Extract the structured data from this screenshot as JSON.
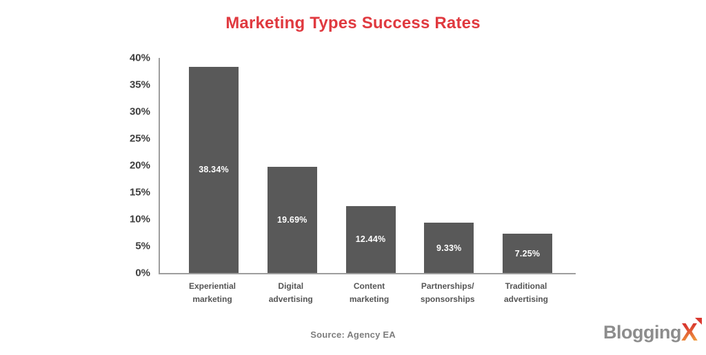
{
  "chart_data": {
    "type": "bar",
    "title": "Marketing Types Success Rates",
    "title_color": "#e0393f",
    "categories": [
      "Experiential\nmarketing",
      "Digital\nadvertising",
      "Content\nmarketing",
      "Partnerships/\nsponsorships",
      "Traditional\nadvertising"
    ],
    "values": [
      38.34,
      19.69,
      12.44,
      9.33,
      7.25
    ],
    "value_labels": [
      "38.34%",
      "19.69%",
      "12.44%",
      "9.33%",
      "7.25%"
    ],
    "yticks": [
      "40%",
      "35%",
      "30%",
      "25%",
      "20%",
      "15%",
      "10%",
      "5%",
      "0%"
    ],
    "ylim": [
      0,
      40
    ],
    "xlabel": "",
    "ylabel": "",
    "grid": false,
    "legend": false,
    "bar_color": "#595959",
    "value_label_color": "#ffffff",
    "axis_color": "#9e9e9e",
    "tick_label_color": "#3e3e3e",
    "category_label_color": "#555555",
    "source": "Source: Agency EA"
  },
  "branding": {
    "logo_text": "Blogging",
    "logo_x": "X",
    "logo_text_color": "#8d8d8d",
    "logo_x_gradient_top": "#d9382f",
    "logo_x_gradient_bottom": "#f2a43e"
  }
}
